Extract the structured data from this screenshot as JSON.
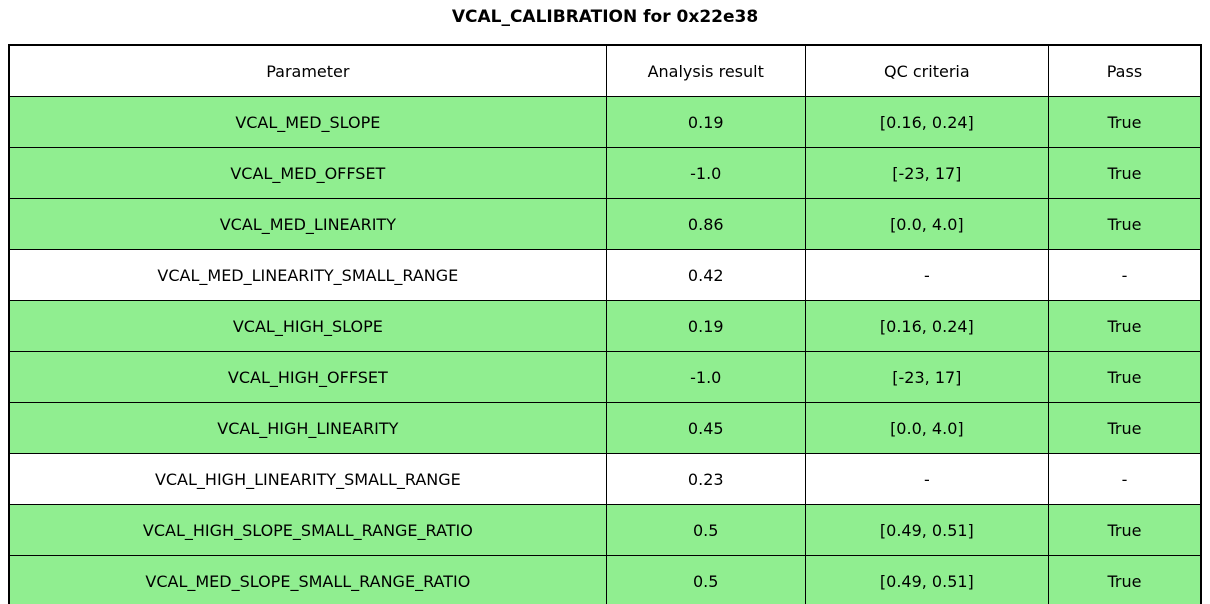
{
  "chart_data": {
    "type": "table",
    "title": "VCAL_CALIBRATION for 0x22e38",
    "columns": [
      "Parameter",
      "Analysis result",
      "QC criteria",
      "Pass"
    ],
    "rows": [
      {
        "cells": [
          "VCAL_MED_SLOPE",
          "0.19",
          "[0.16, 0.24]",
          "True"
        ],
        "highlight": true
      },
      {
        "cells": [
          "VCAL_MED_OFFSET",
          "-1.0",
          "[-23, 17]",
          "True"
        ],
        "highlight": true
      },
      {
        "cells": [
          "VCAL_MED_LINEARITY",
          "0.86",
          "[0.0, 4.0]",
          "True"
        ],
        "highlight": true
      },
      {
        "cells": [
          "VCAL_MED_LINEARITY_SMALL_RANGE",
          "0.42",
          "-",
          "-"
        ],
        "highlight": false
      },
      {
        "cells": [
          "VCAL_HIGH_SLOPE",
          "0.19",
          "[0.16, 0.24]",
          "True"
        ],
        "highlight": true
      },
      {
        "cells": [
          "VCAL_HIGH_OFFSET",
          "-1.0",
          "[-23, 17]",
          "True"
        ],
        "highlight": true
      },
      {
        "cells": [
          "VCAL_HIGH_LINEARITY",
          "0.45",
          "[0.0, 4.0]",
          "True"
        ],
        "highlight": true
      },
      {
        "cells": [
          "VCAL_HIGH_LINEARITY_SMALL_RANGE",
          "0.23",
          "-",
          "-"
        ],
        "highlight": false
      },
      {
        "cells": [
          "VCAL_HIGH_SLOPE_SMALL_RANGE_RATIO",
          "0.5",
          "[0.49, 0.51]",
          "True"
        ],
        "highlight": true
      },
      {
        "cells": [
          "VCAL_MED_SLOPE_SMALL_RANGE_RATIO",
          "0.5",
          "[0.49, 0.51]",
          "True"
        ],
        "highlight": true
      }
    ],
    "colors": {
      "pass_row_bg": "#90EE90",
      "neutral_row_bg": "#FFFFFF",
      "border": "#000000",
      "text": "#000000"
    },
    "layout": {
      "grid": true,
      "legend": "none",
      "column_width_fractions": [
        0.501,
        0.167,
        0.204,
        0.128
      ]
    }
  }
}
